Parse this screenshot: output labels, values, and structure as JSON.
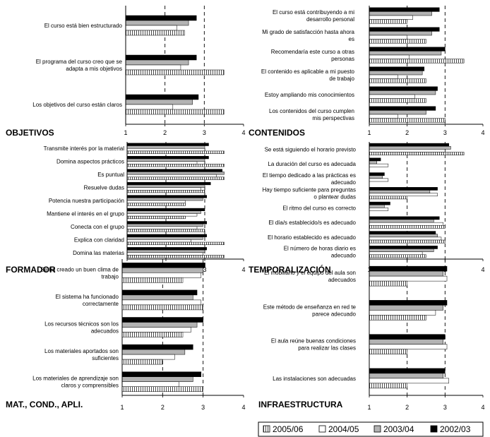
{
  "colors": {
    "s2005_06": "#ffffff",
    "s2004_05": "#ffffff",
    "s2003_04": "#b3b3b3",
    "s2002_03": "#000000"
  },
  "legend": {
    "items": [
      {
        "label": "2005/06",
        "pattern": "vertical-lines"
      },
      {
        "label": "2004/05",
        "pattern": "white"
      },
      {
        "label": "2003/04",
        "pattern": "gray"
      },
      {
        "label": "2002/03",
        "pattern": "black"
      }
    ]
  },
  "chart_data": [
    {
      "type": "bar",
      "orientation": "horizontal",
      "title": "OBJETIVOS",
      "xlim": [
        1,
        4
      ],
      "ticks": [
        "1",
        "2",
        "3",
        "4"
      ],
      "dashed_gridlines": [
        2,
        3
      ],
      "series_names": [
        "2002/03",
        "2003/04",
        "2004/05",
        "2005/06"
      ],
      "categories": [
        {
          "label": [
            "El curso está bien estructurado"
          ],
          "values": [
            2.8,
            2.6,
            2.3,
            2.5
          ]
        },
        {
          "label": [
            "El programa del curso creo que se",
            "adapta a mis objetivos"
          ],
          "values": [
            2.8,
            2.6,
            2.4,
            3.5
          ]
        },
        {
          "label": [
            "Los objetivos del curso están claros"
          ],
          "values": [
            2.85,
            2.7,
            2.2,
            3.5
          ]
        }
      ]
    },
    {
      "type": "bar",
      "orientation": "horizontal",
      "title": "CONTENIDOS",
      "xlim": [
        1,
        4
      ],
      "ticks": [
        "1",
        "2",
        "3",
        "4"
      ],
      "dashed_gridlines": [
        2,
        3
      ],
      "series_names": [
        "2002/03",
        "2003/04",
        "2004/05",
        "2005/06"
      ],
      "categories": [
        {
          "label": [
            "El curso está contribuyendo a mi",
            "desarrollo personal"
          ],
          "values": [
            2.85,
            2.65,
            2.15,
            2.0
          ]
        },
        {
          "label": [
            "Mi grado de satisfacción hasta ahora",
            "es"
          ],
          "values": [
            2.85,
            2.65,
            2.0,
            2.5
          ]
        },
        {
          "label": [
            "Recomendaría este curso a otras",
            "personas"
          ],
          "values": [
            3.0,
            2.9,
            2.05,
            3.5
          ]
        },
        {
          "label": [
            "El contenido es aplicable a mi puesto",
            "de trabajo"
          ],
          "values": [
            2.45,
            2.4,
            1.75,
            2.5
          ]
        },
        {
          "label": [
            "Estoy ampliando mis conocimientos"
          ],
          "values": [
            2.8,
            2.75,
            2.2,
            2.5
          ]
        },
        {
          "label": [
            "Los contenidos del curso cumplen",
            "mis perspectivas"
          ],
          "values": [
            2.75,
            2.5,
            1.75,
            3.0
          ]
        }
      ]
    },
    {
      "type": "bar",
      "orientation": "horizontal",
      "title": "FORMADOR",
      "xlim": [
        1,
        4
      ],
      "ticks": [
        "1",
        "2",
        "3",
        "4"
      ],
      "dashed_gridlines": [
        2,
        3
      ],
      "series_names": [
        "2002/03",
        "2003/04",
        "2004/05",
        "2005/06"
      ],
      "categories": [
        {
          "label": [
            "Transmite interés por la material"
          ],
          "values": [
            3.1,
            3.0,
            3.0,
            3.5
          ]
        },
        {
          "label": [
            "Domina aspectos prácticos"
          ],
          "values": [
            3.1,
            3.0,
            2.8,
            3.5
          ]
        },
        {
          "label": [
            "Es puntual"
          ],
          "values": [
            3.45,
            3.5,
            3.3,
            3.5
          ]
        },
        {
          "label": [
            "Resuelve dudas"
          ],
          "values": [
            3.15,
            3.0,
            2.9,
            3.0
          ]
        },
        {
          "label": [
            "Potencia nuestra participación"
          ],
          "values": [
            3.05,
            2.95,
            2.5,
            2.5
          ]
        },
        {
          "label": [
            "Mantiene el interés en el grupo"
          ],
          "values": [
            3.0,
            2.9,
            2.8,
            2.5
          ]
        },
        {
          "label": [
            "Conecta con el grupo"
          ],
          "values": [
            3.05,
            2.95,
            2.8,
            3.0
          ]
        },
        {
          "label": [
            "Explica con claridad"
          ],
          "values": [
            3.05,
            2.95,
            2.65,
            3.5
          ]
        },
        {
          "label": [
            "Domina las materias"
          ],
          "values": [
            3.05,
            3.0,
            2.95,
            3.5
          ]
        }
      ]
    },
    {
      "type": "bar",
      "orientation": "horizontal",
      "title": "TEMPORALIZACIÓN",
      "xlim": [
        1,
        4
      ],
      "ticks": [
        "1",
        "2",
        "3",
        "4"
      ],
      "dashed_gridlines": [
        2,
        3
      ],
      "series_names": [
        "2002/03",
        "2003/04",
        "2004/05",
        "2005/06"
      ],
      "categories": [
        {
          "label": [
            "Se está siguiendo el horario previsto"
          ],
          "values": [
            3.1,
            3.15,
            3.0,
            3.5
          ]
        },
        {
          "label": [
            "La duración del curso es adecuada"
          ],
          "values": [
            1.3,
            1.2,
            1.5,
            1.0
          ]
        },
        {
          "label": [
            "El tiempo dedicado a las prácticas es",
            "adecuado"
          ],
          "values": [
            1.4,
            1.35,
            1.5,
            1.0
          ]
        },
        {
          "label": [
            "Hay tiempo suficiente para preguntas",
            "o plantear dudas"
          ],
          "values": [
            2.8,
            2.6,
            2.8,
            2.0
          ]
        },
        {
          "label": [
            "El ritmo del curso es correcto"
          ],
          "values": [
            1.55,
            1.4,
            1.5,
            1.0
          ]
        },
        {
          "label": [
            "El día/s establecido/s es adecuado"
          ],
          "values": [
            2.85,
            2.7,
            2.95,
            3.0
          ]
        },
        {
          "label": [
            "El horario establecido es adecuado"
          ],
          "values": [
            2.75,
            2.8,
            2.9,
            3.0
          ]
        },
        {
          "label": [
            "El número de horas diario es",
            "adecuado"
          ],
          "values": [
            2.8,
            2.7,
            2.4,
            2.5
          ]
        }
      ]
    },
    {
      "type": "bar",
      "orientation": "horizontal",
      "title": "MAT., COND., APLI.",
      "xlim": [
        1,
        4
      ],
      "ticks": [
        "1",
        "2",
        "3",
        "4"
      ],
      "dashed_gridlines": [
        2,
        3
      ],
      "series_names": [
        "2002/03",
        "2003/04",
        "2004/05",
        "2005/06"
      ],
      "categories": [
        {
          "label": [
            "Se ha creado un buen clima de",
            "trabajo"
          ],
          "values": [
            3.05,
            3.0,
            2.95,
            2.5
          ]
        },
        {
          "label": [
            "El sistema ha funcionado",
            "correctamente"
          ],
          "values": [
            2.85,
            2.75,
            2.95,
            3.0
          ]
        },
        {
          "label": [
            "Los recursos técnicos son los",
            "adecuados"
          ],
          "values": [
            3.0,
            2.85,
            2.7,
            2.5
          ]
        },
        {
          "label": [
            "Los materiales aportados son",
            "suficientes"
          ],
          "values": [
            2.75,
            2.55,
            2.3,
            2.0
          ]
        },
        {
          "label": [
            "Los materiales de aprendizaje son",
            "claros y comprensibles"
          ],
          "values": [
            2.95,
            2.75,
            2.4,
            3.0
          ]
        }
      ]
    },
    {
      "type": "bar",
      "orientation": "horizontal",
      "title": "INFRAESTRUCTURA",
      "xlim": [
        1,
        4
      ],
      "ticks": [
        "1",
        "2",
        "3",
        "4"
      ],
      "dashed_gridlines": [
        2,
        3
      ],
      "series_names": [
        "2002/03",
        "2003/04",
        "2004/05",
        "2005/06"
      ],
      "categories": [
        {
          "label": [
            "El mobiliario y el equipo del aula son",
            "adecuados"
          ],
          "values": [
            3.05,
            2.95,
            3.05,
            2.0
          ]
        },
        {
          "label": [
            "Este método de enseñanza en red te",
            "parece adecuado"
          ],
          "values": [
            3.05,
            2.95,
            2.75,
            2.5
          ]
        },
        {
          "label": [
            "El aula reúne buenas condiciones",
            "para realizar las clases"
          ],
          "values": [
            3.0,
            2.95,
            3.05,
            2.0
          ]
        },
        {
          "label": [
            "Las instalaciones son adecuadas"
          ],
          "values": [
            3.0,
            2.95,
            3.1,
            2.0
          ]
        }
      ]
    }
  ]
}
